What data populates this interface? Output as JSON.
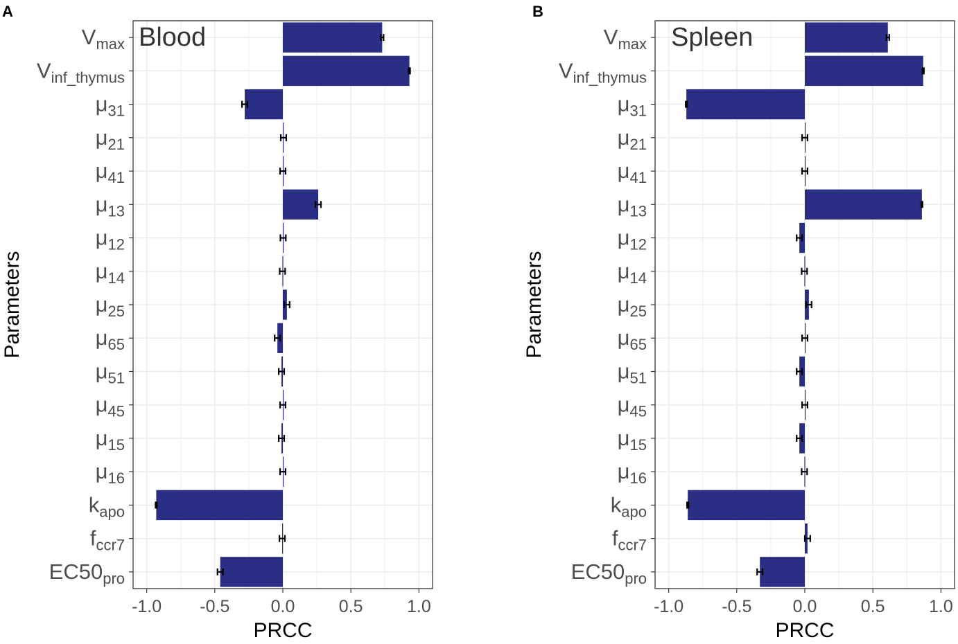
{
  "figure": {
    "x_axis_label": "PRCC",
    "y_axis_label": "Parameters"
  },
  "parameters": [
    {
      "base": "V",
      "sub": "max"
    },
    {
      "base": "V",
      "sub": "inf_thymus"
    },
    {
      "base": "μ",
      "sub": "31"
    },
    {
      "base": "μ",
      "sub": "21"
    },
    {
      "base": "μ",
      "sub": "41"
    },
    {
      "base": "μ",
      "sub": "13"
    },
    {
      "base": "μ",
      "sub": "12"
    },
    {
      "base": "μ",
      "sub": "14"
    },
    {
      "base": "μ",
      "sub": "25"
    },
    {
      "base": "μ",
      "sub": "65"
    },
    {
      "base": "μ",
      "sub": "51"
    },
    {
      "base": "μ",
      "sub": "45"
    },
    {
      "base": "μ",
      "sub": "15"
    },
    {
      "base": "μ",
      "sub": "16"
    },
    {
      "base": "k",
      "sub": "apo"
    },
    {
      "base": "f",
      "sub": "ccr7"
    },
    {
      "base": "EC50",
      "sub": "pro"
    }
  ],
  "colors": {
    "bar": "#2a2f85",
    "grid": "#ebebeb",
    "panel_border": "#333333",
    "tick_text": "#4d4d4d"
  },
  "chart_data": [
    {
      "panel": "A",
      "type": "bar",
      "orientation": "horizontal",
      "title": "Blood",
      "xlabel": "PRCC",
      "ylabel": "Parameters",
      "xlim": [
        -1.1,
        1.1
      ],
      "xticks": [
        -1.0,
        -0.5,
        0.0,
        0.5,
        1.0
      ],
      "xtick_labels": [
        "-1.0",
        "-0.5",
        "0.0",
        "0.5",
        "1.0"
      ],
      "categories": [
        "Vmax",
        "Vinf_thymus",
        "μ31",
        "μ21",
        "μ41",
        "μ13",
        "μ12",
        "μ14",
        "μ25",
        "μ65",
        "μ51",
        "μ45",
        "μ15",
        "μ16",
        "kapo",
        "fccr7",
        "EC50pro"
      ],
      "values": [
        0.73,
        0.93,
        -0.28,
        0.005,
        0.0,
        0.26,
        0.002,
        -0.003,
        0.03,
        -0.04,
        -0.01,
        0.0,
        -0.01,
        0.0,
        -0.93,
        -0.005,
        -0.46
      ],
      "errors": [
        0.01,
        0.005,
        0.02,
        0.02,
        0.02,
        0.02,
        0.02,
        0.02,
        0.02,
        0.02,
        0.02,
        0.02,
        0.02,
        0.02,
        0.005,
        0.02,
        0.02
      ],
      "grid": true
    },
    {
      "panel": "B",
      "type": "bar",
      "orientation": "horizontal",
      "title": "Spleen",
      "xlabel": "PRCC",
      "ylabel": "Parameters",
      "xlim": [
        -1.1,
        1.1
      ],
      "xticks": [
        -1.0,
        -0.5,
        0.0,
        0.5,
        1.0
      ],
      "xtick_labels": [
        "-1.0",
        "-0.5",
        "0.0",
        "0.5",
        "1.0"
      ],
      "categories": [
        "Vmax",
        "Vinf_thymus",
        "μ31",
        "μ21",
        "μ41",
        "μ13",
        "μ12",
        "μ14",
        "μ25",
        "μ65",
        "μ51",
        "μ45",
        "μ15",
        "μ16",
        "kapo",
        "fccr7",
        "EC50pro"
      ],
      "values": [
        0.61,
        0.87,
        -0.87,
        0.0,
        0.0,
        0.86,
        -0.04,
        -0.003,
        0.03,
        0.0,
        -0.04,
        0.0,
        -0.04,
        -0.003,
        -0.86,
        0.02,
        -0.33
      ],
      "errors": [
        0.01,
        0.005,
        0.005,
        0.02,
        0.02,
        0.005,
        0.02,
        0.02,
        0.02,
        0.02,
        0.02,
        0.02,
        0.02,
        0.02,
        0.005,
        0.02,
        0.02
      ],
      "grid": true
    }
  ]
}
